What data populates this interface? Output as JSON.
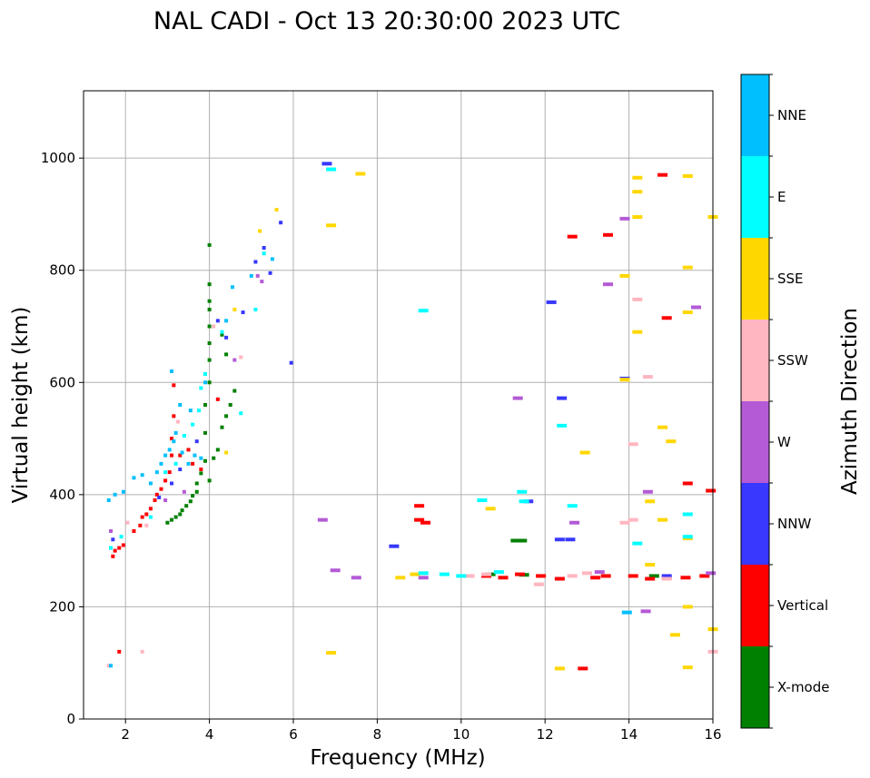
{
  "chart_data": {
    "type": "scatter",
    "title": "NAL CADI - Oct 13 20:30:00 2023 UTC",
    "xlabel": "Frequency (MHz)",
    "ylabel": "Virtual height (km)",
    "xlim": [
      1,
      16
    ],
    "ylim": [
      0,
      1120
    ],
    "xticks": [
      2,
      4,
      6,
      8,
      10,
      12,
      14,
      16
    ],
    "yticks": [
      0,
      200,
      400,
      600,
      800,
      1000
    ],
    "grid": true,
    "colorbar": {
      "label": "Azimuth Direction",
      "position": "right",
      "categories": [
        {
          "name": "X-mode",
          "color": "#008000"
        },
        {
          "name": "Vertical",
          "color": "#ff0000"
        },
        {
          "name": "NNW",
          "color": "#3838ff"
        },
        {
          "name": "W",
          "color": "#b45ad6"
        },
        {
          "name": "SSW",
          "color": "#ffb6c1"
        },
        {
          "name": "SSE",
          "color": "#ffd700"
        },
        {
          "name": "E",
          "color": "#00ffff"
        },
        {
          "name": "NNE",
          "color": "#00bfff"
        }
      ]
    },
    "series": [
      {
        "name": "X-mode",
        "points": [
          [
            3.0,
            350
          ],
          [
            3.1,
            355
          ],
          [
            3.2,
            360
          ],
          [
            3.3,
            365
          ],
          [
            3.35,
            372
          ],
          [
            3.45,
            380
          ],
          [
            3.55,
            388
          ],
          [
            3.6,
            398
          ],
          [
            3.7,
            405
          ],
          [
            3.7,
            420
          ],
          [
            3.8,
            438
          ],
          [
            3.9,
            460
          ],
          [
            4.0,
            425
          ],
          [
            4.1,
            465
          ],
          [
            4.2,
            480
          ],
          [
            4.3,
            520
          ],
          [
            4.4,
            540
          ],
          [
            4.5,
            560
          ],
          [
            4.6,
            585
          ],
          [
            3.9,
            510
          ],
          [
            3.9,
            560
          ],
          [
            4.0,
            600
          ],
          [
            4.0,
            640
          ],
          [
            4.0,
            670
          ],
          [
            4.0,
            700
          ],
          [
            4.0,
            730
          ],
          [
            4.0,
            745
          ],
          [
            4.0,
            775
          ],
          [
            4.0,
            845
          ],
          [
            4.3,
            685
          ],
          [
            4.4,
            650
          ],
          [
            11.3,
            318
          ],
          [
            11.45,
            318
          ],
          [
            14.6,
            255
          ],
          [
            11.5,
            257
          ],
          [
            10.7,
            258
          ]
        ]
      },
      {
        "name": "Vertical",
        "points": [
          [
            1.7,
            290
          ],
          [
            1.75,
            300
          ],
          [
            1.85,
            305
          ],
          [
            1.95,
            310
          ],
          [
            2.2,
            335
          ],
          [
            2.35,
            345
          ],
          [
            2.4,
            360
          ],
          [
            2.5,
            365
          ],
          [
            2.6,
            375
          ],
          [
            2.7,
            390
          ],
          [
            2.75,
            400
          ],
          [
            2.85,
            410
          ],
          [
            2.95,
            425
          ],
          [
            3.05,
            440
          ],
          [
            3.1,
            470
          ],
          [
            3.1,
            500
          ],
          [
            3.15,
            540
          ],
          [
            3.15,
            595
          ],
          [
            3.3,
            470
          ],
          [
            3.5,
            480
          ],
          [
            3.6,
            455
          ],
          [
            3.8,
            445
          ],
          [
            4.2,
            570
          ],
          [
            1.85,
            120
          ],
          [
            9.0,
            380
          ],
          [
            9.0,
            355
          ],
          [
            9.15,
            350
          ],
          [
            10.6,
            255
          ],
          [
            11.0,
            252
          ],
          [
            11.4,
            258
          ],
          [
            11.9,
            255
          ],
          [
            12.35,
            250
          ],
          [
            12.9,
            90
          ],
          [
            13.2,
            252
          ],
          [
            13.45,
            255
          ],
          [
            14.1,
            255
          ],
          [
            14.5,
            250
          ],
          [
            14.9,
            252
          ],
          [
            15.35,
            252
          ],
          [
            15.8,
            255
          ],
          [
            12.65,
            860
          ],
          [
            13.5,
            863
          ],
          [
            14.8,
            970
          ],
          [
            14.9,
            715
          ],
          [
            15.4,
            420
          ],
          [
            15.95,
            407
          ]
        ]
      },
      {
        "name": "NNW",
        "points": [
          [
            1.7,
            320
          ],
          [
            2.8,
            395
          ],
          [
            3.1,
            420
          ],
          [
            3.3,
            445
          ],
          [
            3.7,
            495
          ],
          [
            4.2,
            710
          ],
          [
            4.4,
            680
          ],
          [
            4.8,
            725
          ],
          [
            5.1,
            815
          ],
          [
            5.3,
            840
          ],
          [
            5.45,
            795
          ],
          [
            5.7,
            885
          ],
          [
            5.95,
            635
          ],
          [
            6.8,
            990
          ],
          [
            8.4,
            308
          ],
          [
            11.6,
            388
          ],
          [
            12.15,
            743
          ],
          [
            12.35,
            320
          ],
          [
            12.4,
            572
          ],
          [
            12.6,
            320
          ],
          [
            13.9,
            607
          ],
          [
            14.9,
            255
          ]
        ]
      },
      {
        "name": "W",
        "points": [
          [
            1.65,
            335
          ],
          [
            2.95,
            390
          ],
          [
            3.4,
            405
          ],
          [
            4.6,
            640
          ],
          [
            5.15,
            790
          ],
          [
            5.25,
            780
          ],
          [
            6.7,
            355
          ],
          [
            7.0,
            265
          ],
          [
            7.5,
            252
          ],
          [
            9.1,
            252
          ],
          [
            11.35,
            572
          ],
          [
            12.7,
            350
          ],
          [
            13.3,
            262
          ],
          [
            13.5,
            775
          ],
          [
            13.9,
            892
          ],
          [
            14.45,
            405
          ],
          [
            14.4,
            192
          ],
          [
            15.6,
            734
          ],
          [
            15.95,
            260
          ]
        ]
      },
      {
        "name": "SSW",
        "points": [
          [
            1.6,
            95
          ],
          [
            2.05,
            350
          ],
          [
            2.4,
            120
          ],
          [
            2.5,
            345
          ],
          [
            3.25,
            530
          ],
          [
            4.1,
            700
          ],
          [
            4.75,
            645
          ],
          [
            10.2,
            255
          ],
          [
            10.6,
            258
          ],
          [
            11.85,
            240
          ],
          [
            12.65,
            255
          ],
          [
            13.0,
            260
          ],
          [
            13.9,
            350
          ],
          [
            14.2,
            748
          ],
          [
            14.45,
            610
          ],
          [
            14.1,
            490
          ],
          [
            14.1,
            355
          ],
          [
            14.9,
            250
          ],
          [
            16.0,
            120
          ]
        ]
      },
      {
        "name": "SSE",
        "points": [
          [
            4.4,
            475
          ],
          [
            4.6,
            730
          ],
          [
            5.2,
            870
          ],
          [
            5.6,
            908
          ],
          [
            6.9,
            880
          ],
          [
            6.9,
            118
          ],
          [
            7.6,
            972
          ],
          [
            8.55,
            252
          ],
          [
            8.9,
            258
          ],
          [
            10.7,
            375
          ],
          [
            12.35,
            90
          ],
          [
            12.95,
            475
          ],
          [
            13.9,
            790
          ],
          [
            13.9,
            605
          ],
          [
            14.2,
            690
          ],
          [
            14.2,
            965
          ],
          [
            14.2,
            940
          ],
          [
            14.2,
            895
          ],
          [
            14.5,
            388
          ],
          [
            14.5,
            275
          ],
          [
            14.8,
            520
          ],
          [
            14.8,
            355
          ],
          [
            15.0,
            495
          ],
          [
            15.1,
            150
          ],
          [
            15.4,
            968
          ],
          [
            15.4,
            805
          ],
          [
            15.4,
            725
          ],
          [
            15.4,
            322
          ],
          [
            15.4,
            200
          ],
          [
            15.4,
            92
          ],
          [
            16.0,
            895
          ],
          [
            16.0,
            160
          ]
        ]
      },
      {
        "name": "E",
        "points": [
          [
            1.65,
            305
          ],
          [
            1.9,
            325
          ],
          [
            2.6,
            360
          ],
          [
            2.95,
            440
          ],
          [
            3.2,
            455
          ],
          [
            3.4,
            505
          ],
          [
            3.6,
            525
          ],
          [
            3.75,
            550
          ],
          [
            3.8,
            590
          ],
          [
            3.9,
            615
          ],
          [
            4.3,
            690
          ],
          [
            4.75,
            545
          ],
          [
            5.1,
            730
          ],
          [
            5.3,
            830
          ],
          [
            6.9,
            980
          ],
          [
            9.1,
            728
          ],
          [
            9.1,
            260
          ],
          [
            9.6,
            258
          ],
          [
            10.0,
            255
          ],
          [
            10.5,
            390
          ],
          [
            10.9,
            262
          ],
          [
            11.45,
            405
          ],
          [
            11.5,
            388
          ],
          [
            12.4,
            523
          ],
          [
            12.65,
            380
          ],
          [
            14.2,
            313
          ],
          [
            15.4,
            365
          ],
          [
            15.4,
            325
          ]
        ]
      },
      {
        "name": "NNE",
        "points": [
          [
            1.6,
            390
          ],
          [
            1.65,
            95
          ],
          [
            1.75,
            400
          ],
          [
            1.95,
            405
          ],
          [
            2.2,
            430
          ],
          [
            2.4,
            435
          ],
          [
            2.6,
            420
          ],
          [
            2.75,
            440
          ],
          [
            2.85,
            455
          ],
          [
            2.95,
            470
          ],
          [
            3.05,
            480
          ],
          [
            3.15,
            495
          ],
          [
            3.2,
            510
          ],
          [
            3.35,
            475
          ],
          [
            3.5,
            455
          ],
          [
            3.65,
            470
          ],
          [
            3.8,
            465
          ],
          [
            3.1,
            620
          ],
          [
            3.3,
            560
          ],
          [
            3.55,
            550
          ],
          [
            3.9,
            600
          ],
          [
            4.4,
            710
          ],
          [
            4.55,
            770
          ],
          [
            5.0,
            790
          ],
          [
            5.5,
            820
          ],
          [
            13.95,
            190
          ]
        ]
      }
    ]
  }
}
